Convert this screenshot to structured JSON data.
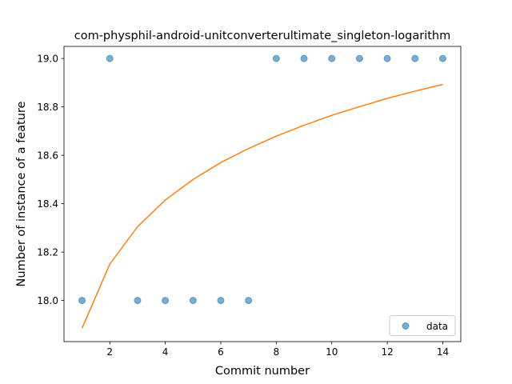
{
  "chart_data": {
    "type": "scatter",
    "title": "com-physphil-android-unitconverterultimate_singleton-logarithm",
    "xlabel": "Commit number",
    "ylabel": "Number of instance of a feature",
    "xlim": [
      0.35,
      14.65
    ],
    "ylim": [
      17.83,
      19.05
    ],
    "xticks": [
      2,
      4,
      6,
      8,
      10,
      12,
      14
    ],
    "yticks": [
      18.0,
      18.2,
      18.4,
      18.6,
      18.8,
      19.0
    ],
    "xtick_labels": [
      "2",
      "4",
      "6",
      "8",
      "10",
      "12",
      "14"
    ],
    "ytick_labels": [
      "18.0",
      "18.2",
      "18.4",
      "18.6",
      "18.8",
      "19.0"
    ],
    "grid": false,
    "legend_position": "lower-right",
    "series": [
      {
        "name": "data",
        "kind": "scatter",
        "color": "#1f77b4",
        "x": [
          1,
          2,
          3,
          4,
          5,
          6,
          7,
          8,
          9,
          10,
          11,
          12,
          13,
          14
        ],
        "y": [
          18.0,
          19.0,
          18.0,
          18.0,
          18.0,
          18.0,
          18.0,
          19.0,
          19.0,
          19.0,
          19.0,
          19.0,
          19.0,
          19.0
        ]
      },
      {
        "kind": "line",
        "color": "#ff7f0e",
        "x": [
          1,
          2,
          3,
          4,
          5,
          6,
          7,
          8,
          9,
          10,
          11,
          12,
          13,
          14
        ],
        "y": [
          17.885,
          18.15,
          18.305,
          18.415,
          18.5,
          18.57,
          18.628,
          18.679,
          18.724,
          18.765,
          18.801,
          18.835,
          18.865,
          18.893
        ]
      }
    ]
  }
}
